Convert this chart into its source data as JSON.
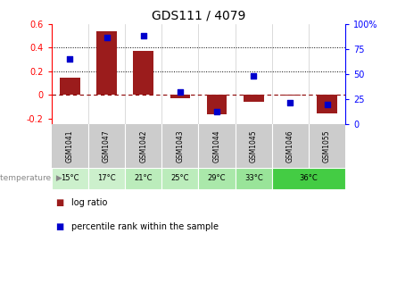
{
  "title": "GDS111 / 4079",
  "samples": [
    "GSM1041",
    "GSM1047",
    "GSM1042",
    "GSM1043",
    "GSM1044",
    "GSM1045",
    "GSM1046",
    "GSM1055"
  ],
  "log_ratio": [
    0.145,
    0.54,
    0.375,
    -0.025,
    -0.165,
    -0.06,
    -0.005,
    -0.155
  ],
  "percentile": [
    65,
    87,
    88,
    32,
    13,
    48,
    22,
    20
  ],
  "bar_color": "#9B1C1C",
  "dot_color": "#0000CC",
  "zero_line_color": "#8B0000",
  "ylim": [
    -0.25,
    0.6
  ],
  "yticks": [
    -0.2,
    0.0,
    0.2,
    0.4,
    0.6
  ],
  "y2lim": [
    0,
    100
  ],
  "y2ticks": [
    0,
    25,
    50,
    75,
    100
  ],
  "subplot_bg": "#cccccc",
  "temp_spans": [
    [
      0,
      1,
      "15°C",
      "#ccf0cc"
    ],
    [
      1,
      2,
      "17°C",
      "#ccf0cc"
    ],
    [
      2,
      3,
      "21°C",
      "#bbecbb"
    ],
    [
      3,
      4,
      "25°C",
      "#bbecbb"
    ],
    [
      4,
      5,
      "29°C",
      "#aae8aa"
    ],
    [
      5,
      6,
      "33°C",
      "#99e499"
    ],
    [
      6,
      8,
      "36°C",
      "#44cc44"
    ]
  ]
}
